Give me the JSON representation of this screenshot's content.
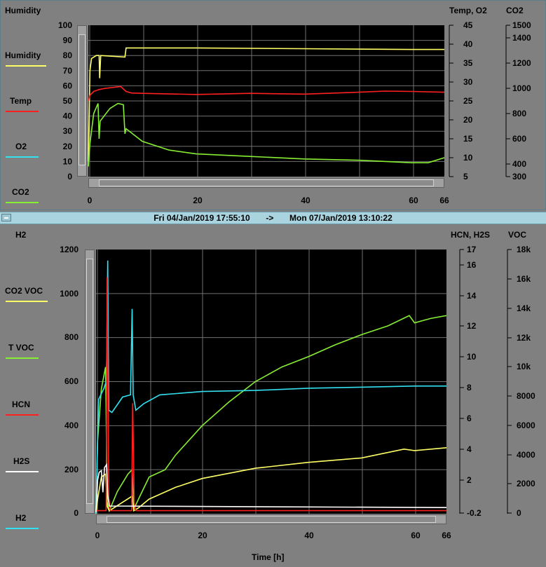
{
  "top_panel": {
    "left_title": "Humidity",
    "right_title": "Temp, O2",
    "far_right_title": "CO2",
    "legend": [
      {
        "label": "Humidity",
        "color": "#ffff66"
      },
      {
        "label": "Temp",
        "color": "#ff2020"
      },
      {
        "label": "O2",
        "color": "#33e0f0"
      },
      {
        "label": "CO2",
        "color": "#88ee33"
      }
    ]
  },
  "time_range": {
    "start": "Fri 04/Jan/2019 17:55:10",
    "arrow": "->",
    "end": "Mon 07/Jan/2019 13:10:22"
  },
  "bottom_panel": {
    "left_title": "H2",
    "right_title": "HCN, H2S",
    "far_right_title": "VOC",
    "xlabel": "Time [h]",
    "legend": [
      {
        "label": "CO2 VOC",
        "color": "#ffff66"
      },
      {
        "label": "T VOC",
        "color": "#88ee33"
      },
      {
        "label": "HCN",
        "color": "#ff2020"
      },
      {
        "label": "H2S",
        "color": "#ffffff"
      },
      {
        "label": "H2",
        "color": "#33e0f0"
      }
    ]
  },
  "chart_data": [
    {
      "type": "line",
      "xlim": [
        0,
        66
      ],
      "x_ticks": [
        "0",
        "20",
        "40",
        "60",
        "66"
      ],
      "axes": {
        "left": {
          "title": "Humidity",
          "ylim": [
            0,
            100
          ],
          "ticks": [
            "100",
            "90",
            "80",
            "70",
            "60",
            "50",
            "40",
            "30",
            "20",
            "10",
            "0"
          ]
        },
        "right": {
          "title": "Temp, O2",
          "ylim": [
            5,
            45
          ],
          "ticks": [
            "45",
            "40",
            "35",
            "30",
            "25",
            "20",
            "15",
            "10",
            "5"
          ]
        },
        "far_right": {
          "title": "CO2",
          "ylim": [
            300,
            1500
          ],
          "ticks": [
            "1500",
            "1400",
            "1200",
            "1000",
            "800",
            "600",
            "400",
            "300"
          ]
        }
      },
      "grid": true,
      "series": [
        {
          "name": "Humidity",
          "axis": "left",
          "color": "#ffff66",
          "points": [
            [
              0,
              10
            ],
            [
              0.3,
              70
            ],
            [
              0.6,
              78
            ],
            [
              1.5,
              80
            ],
            [
              2,
              80
            ],
            [
              2.1,
              65
            ],
            [
              2.3,
              80
            ],
            [
              6.8,
              79
            ],
            [
              7,
              85
            ],
            [
              20,
              85
            ],
            [
              40,
              84.5
            ],
            [
              60,
              84
            ],
            [
              66,
              84
            ]
          ]
        },
        {
          "name": "Temp",
          "axis": "right",
          "color": "#ff2020",
          "points": [
            [
              0,
              25
            ],
            [
              0.3,
              26.5
            ],
            [
              1,
              27.5
            ],
            [
              2,
              28
            ],
            [
              3,
              28.3
            ],
            [
              6,
              28.8
            ],
            [
              7,
              27.5
            ],
            [
              8,
              27.1
            ],
            [
              10,
              27
            ],
            [
              20,
              26.7
            ],
            [
              30,
              27
            ],
            [
              40,
              26.8
            ],
            [
              50,
              27.3
            ],
            [
              55,
              27.6
            ],
            [
              60,
              27.5
            ],
            [
              66,
              27.3
            ]
          ]
        },
        {
          "name": "CO2",
          "axis": "far_right",
          "color": "#88ee33",
          "points": [
            [
              0,
              380
            ],
            [
              0.3,
              560
            ],
            [
              1,
              800
            ],
            [
              1.8,
              880
            ],
            [
              2,
              600
            ],
            [
              2.2,
              740
            ],
            [
              4,
              840
            ],
            [
              5.5,
              880
            ],
            [
              6.5,
              870
            ],
            [
              6.8,
              640
            ],
            [
              7,
              680
            ],
            [
              10,
              580
            ],
            [
              15,
              510
            ],
            [
              20,
              480
            ],
            [
              30,
              460
            ],
            [
              40,
              440
            ],
            [
              50,
              430
            ],
            [
              60,
              410
            ],
            [
              63,
              410
            ],
            [
              66,
              450
            ]
          ]
        },
        {
          "name": "O2",
          "axis": "right",
          "color": "#33e0f0",
          "points": []
        }
      ]
    },
    {
      "type": "line",
      "xlabel": "Time [h]",
      "xlim": [
        0,
        66
      ],
      "x_ticks": [
        "0",
        "20",
        "40",
        "60",
        "66"
      ],
      "axes": {
        "left": {
          "title": "H2",
          "ylim": [
            0,
            1200
          ],
          "ticks": [
            "1200",
            "1000",
            "800",
            "600",
            "400",
            "200",
            "0"
          ]
        },
        "right": {
          "title": "HCN, H2S",
          "ylim": [
            -0.2,
            17
          ],
          "ticks": [
            "17",
            "16",
            "14",
            "12",
            "10",
            "8",
            "6",
            "4",
            "2",
            "-0.2"
          ]
        },
        "far_right": {
          "title": "VOC",
          "ylim": [
            0,
            18000
          ],
          "ticks": [
            "18k",
            "16k",
            "14k",
            "12k",
            "10k",
            "8000",
            "6000",
            "4000",
            "2000",
            "0"
          ]
        }
      },
      "grid": true,
      "series": [
        {
          "name": "T VOC",
          "axis": "far_right",
          "color": "#88ee33",
          "points": [
            [
              0,
              0
            ],
            [
              0.3,
              5000
            ],
            [
              1,
              8500
            ],
            [
              1.8,
              10000
            ],
            [
              2.1,
              800
            ],
            [
              2.5,
              200
            ],
            [
              4,
              1500
            ],
            [
              6,
              2700
            ],
            [
              6.8,
              3000
            ],
            [
              7.1,
              300
            ],
            [
              8,
              1000
            ],
            [
              10,
              2500
            ],
            [
              13,
              3000
            ],
            [
              15,
              4000
            ],
            [
              20,
              6000
            ],
            [
              25,
              7600
            ],
            [
              30,
              9000
            ],
            [
              35,
              10000
            ],
            [
              40,
              10700
            ],
            [
              45,
              11500
            ],
            [
              50,
              12200
            ],
            [
              55,
              12800
            ],
            [
              59,
              13500
            ],
            [
              60,
              13000
            ],
            [
              63,
              13300
            ],
            [
              66,
              13500
            ]
          ]
        },
        {
          "name": "CO2 VOC",
          "axis": "far_right",
          "color": "#ffff66",
          "points": [
            [
              0,
              0
            ],
            [
              0.3,
              1000
            ],
            [
              1,
              2500
            ],
            [
              1.8,
              2700
            ],
            [
              2.1,
              500
            ],
            [
              2.5,
              200
            ],
            [
              6.8,
              1200
            ],
            [
              7.1,
              200
            ],
            [
              8,
              400
            ],
            [
              10,
              1000
            ],
            [
              15,
              1800
            ],
            [
              20,
              2400
            ],
            [
              30,
              3100
            ],
            [
              40,
              3500
            ],
            [
              50,
              3800
            ],
            [
              58,
              4400
            ],
            [
              60,
              4300
            ],
            [
              66,
              4500
            ]
          ]
        },
        {
          "name": "H2",
          "axis": "left",
          "color": "#33e0f0",
          "points": [
            [
              0,
              0
            ],
            [
              0.3,
              350
            ],
            [
              0.5,
              520
            ],
            [
              1.5,
              570
            ],
            [
              1.9,
              600
            ],
            [
              2,
              700
            ],
            [
              2.2,
              1150
            ],
            [
              2.4,
              470
            ],
            [
              3,
              460
            ],
            [
              5,
              530
            ],
            [
              6.5,
              540
            ],
            [
              6.8,
              930
            ],
            [
              7,
              540
            ],
            [
              7.5,
              470
            ],
            [
              9,
              500
            ],
            [
              12,
              540
            ],
            [
              20,
              555
            ],
            [
              30,
              560
            ],
            [
              40,
              570
            ],
            [
              50,
              575
            ],
            [
              60,
              580
            ],
            [
              66,
              580
            ]
          ]
        },
        {
          "name": "HCN",
          "axis": "right",
          "color": "#ff2020",
          "points": [
            [
              0,
              0
            ],
            [
              1.9,
              0
            ],
            [
              2.1,
              15.2
            ],
            [
              2.4,
              0.8
            ],
            [
              2.7,
              0
            ],
            [
              6.7,
              0
            ],
            [
              6.9,
              7
            ],
            [
              7.2,
              0.5
            ],
            [
              7.5,
              0
            ],
            [
              66,
              0
            ]
          ]
        },
        {
          "name": "H2S",
          "axis": "right",
          "color": "#ffffff",
          "points": [
            [
              0,
              -0.1
            ],
            [
              0.3,
              2
            ],
            [
              0.6,
              2.5
            ],
            [
              1,
              2.6
            ],
            [
              1.3,
              1.2
            ],
            [
              1.6,
              2.8
            ],
            [
              2,
              3
            ],
            [
              2.2,
              1
            ],
            [
              2.5,
              0.3
            ],
            [
              66,
              0.2
            ]
          ]
        }
      ]
    }
  ]
}
